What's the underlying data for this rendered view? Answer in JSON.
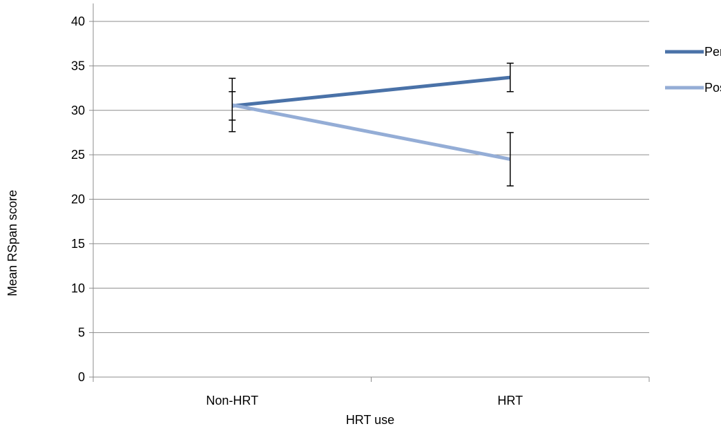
{
  "chart_data": {
    "type": "line",
    "categories": [
      "Non-HRT",
      "HRT"
    ],
    "series": [
      {
        "name": "Peri",
        "values": [
          30.5,
          33.7
        ],
        "error": [
          1.6,
          1.6
        ],
        "color": "#4A72A8"
      },
      {
        "name": "Post",
        "values": [
          30.6,
          24.5
        ],
        "error": [
          3.0,
          3.0
        ],
        "color": "#94ADD6"
      }
    ],
    "title": "",
    "xlabel": "HRT use",
    "ylabel": "Mean RSpan score",
    "ylim": [
      0,
      40
    ],
    "yticks": [
      0,
      5,
      10,
      15,
      20,
      25,
      30,
      35,
      40
    ],
    "grid": true,
    "legend_position": "right"
  }
}
